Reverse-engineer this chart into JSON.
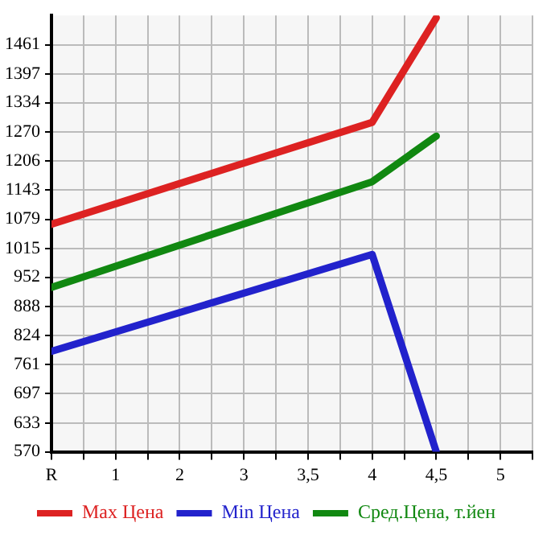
{
  "chart_data": {
    "type": "line",
    "categories": [
      "R",
      "1",
      "2",
      "3",
      "3,5",
      "4",
      "4,5",
      "5"
    ],
    "series": [
      {
        "name": "Max Цена",
        "color": "#dd2222",
        "values": [
          1068,
          null,
          null,
          null,
          null,
          1291,
          1520,
          null
        ]
      },
      {
        "name": "Min Цена",
        "color": "#2222cc",
        "values": [
          790,
          null,
          null,
          null,
          null,
          1002,
          570,
          null
        ]
      },
      {
        "name": "Сред.Цена, т.йен",
        "color": "#118811",
        "values": [
          930,
          null,
          null,
          null,
          null,
          1161,
          1261,
          null
        ]
      }
    ],
    "ylim": [
      570,
      1525
    ],
    "yticks": [
      570,
      633,
      697,
      761,
      824,
      888,
      952,
      1015,
      1079,
      1143,
      1206,
      1270,
      1334,
      1397,
      1461
    ],
    "grid": true,
    "legend": "bottom",
    "marker": "none",
    "line_style": "solid"
  }
}
